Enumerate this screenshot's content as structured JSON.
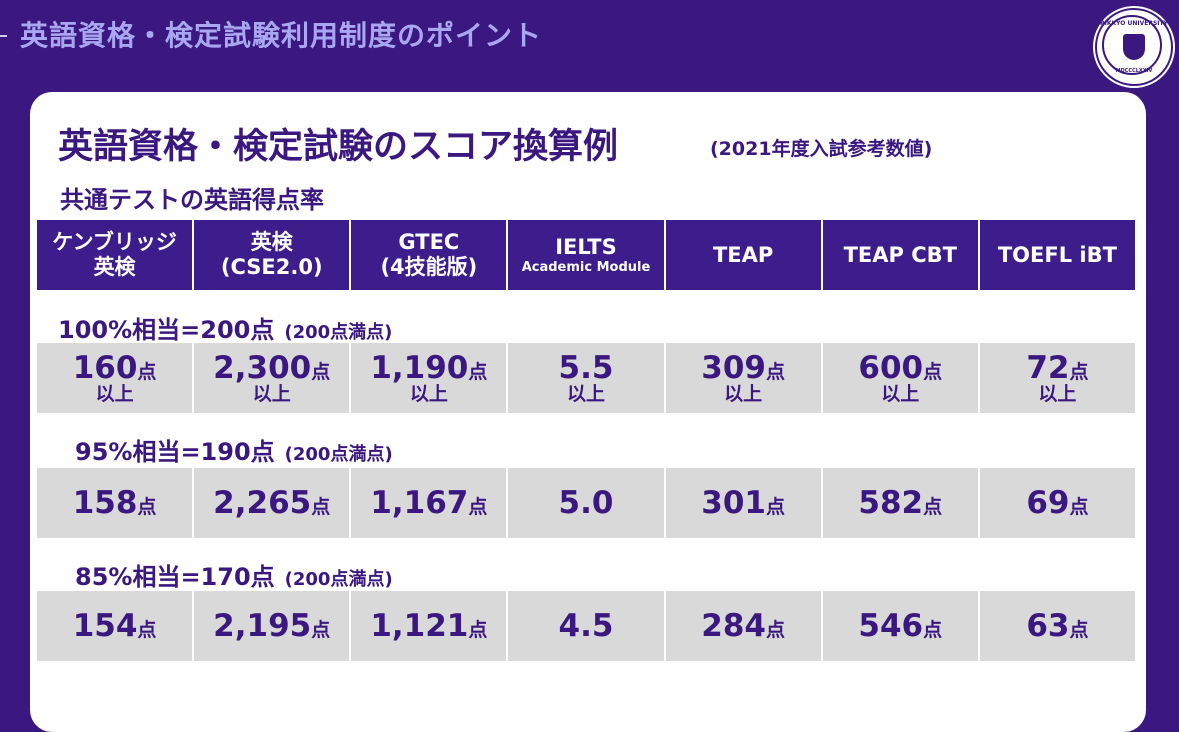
{
  "header": {
    "title": "英語資格・検定試験利用制度のポイント",
    "logo_text": "RIKKYO UNIVERSITY",
    "logo_year": "MDCCCLXXIV"
  },
  "card": {
    "title": "英語資格・検定試験のスコア換算例",
    "title_note": "(2021年度入試参考数値)",
    "subtitle": "共通テストの英語得点率"
  },
  "table": {
    "columns": [
      {
        "lines": [
          "ケンブリッジ",
          "英検"
        ]
      },
      {
        "lines": [
          "英検",
          "(CSE2.0)"
        ]
      },
      {
        "lines": [
          "GTEC",
          "(4技能版)"
        ]
      },
      {
        "lines": [
          "IELTS"
        ],
        "sub": "Academic Module"
      },
      {
        "lines": [
          "TEAP"
        ]
      },
      {
        "lines": [
          "TEAP CBT"
        ]
      },
      {
        "lines": [
          "TOEFL iBT"
        ]
      }
    ],
    "sections": [
      {
        "label": "100%相当=200点",
        "label_note": "(200点満点)",
        "cells": [
          {
            "value": "160",
            "unit": "点",
            "note": "以上"
          },
          {
            "value": "2,300",
            "unit": "点",
            "note": "以上"
          },
          {
            "value": "1,190",
            "unit": "点",
            "note": "以上"
          },
          {
            "value": "5.5",
            "note": "以上"
          },
          {
            "value": "309",
            "unit": "点",
            "note": "以上"
          },
          {
            "value": "600",
            "unit": "点",
            "note": "以上"
          },
          {
            "value": "72",
            "unit": "点",
            "note": "以上"
          }
        ]
      },
      {
        "label": "95%相当=190点",
        "label_note": "(200点満点)",
        "cells": [
          {
            "value": "158",
            "unit": "点"
          },
          {
            "value": "2,265",
            "unit": "点"
          },
          {
            "value": "1,167",
            "unit": "点"
          },
          {
            "value": "5.0"
          },
          {
            "value": "301",
            "unit": "点"
          },
          {
            "value": "582",
            "unit": "点"
          },
          {
            "value": "69",
            "unit": "点"
          }
        ]
      },
      {
        "label": "85%相当=170点",
        "label_note": "(200点満点)",
        "cells": [
          {
            "value": "154",
            "unit": "点"
          },
          {
            "value": "2,195",
            "unit": "点"
          },
          {
            "value": "1,121",
            "unit": "点"
          },
          {
            "value": "4.5"
          },
          {
            "value": "284",
            "unit": "点"
          },
          {
            "value": "546",
            "unit": "点"
          },
          {
            "value": "63",
            "unit": "点"
          }
        ]
      }
    ]
  }
}
